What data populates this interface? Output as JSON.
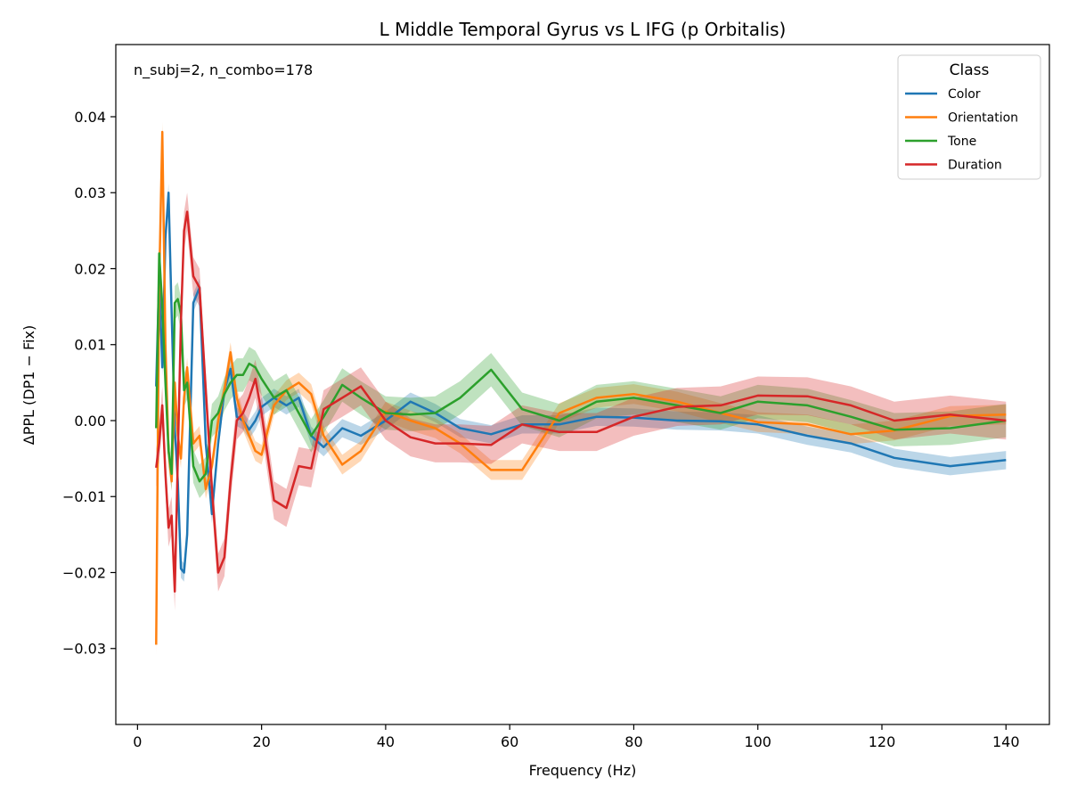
{
  "chart_data": {
    "type": "line",
    "title": "L Middle Temporal Gyrus vs L IFG (p Orbitalis)",
    "xlabel": "Frequency (Hz)",
    "ylabel": "ΔPPL (DP1 − Fix)",
    "xlim": [
      -3.5,
      147
    ],
    "ylim": [
      -0.04,
      0.0495
    ],
    "xticks": [
      0,
      20,
      40,
      60,
      80,
      100,
      120,
      140
    ],
    "yticks": [
      -0.03,
      -0.02,
      -0.01,
      0.0,
      0.01,
      0.02,
      0.03,
      0.04
    ],
    "ytick_labels": [
      "−0.03",
      "−0.02",
      "−0.01",
      "0.00",
      "0.01",
      "0.02",
      "0.03",
      "0.04"
    ],
    "grid": false,
    "annotation": "n_subj=2, n_combo=178",
    "legend": {
      "title": "Class",
      "placement": "top-right"
    },
    "x": [
      3,
      3.5,
      4,
      4.5,
      5,
      5.5,
      6,
      6.5,
      7,
      7.5,
      8,
      9,
      10,
      11,
      12,
      13,
      14,
      15,
      16,
      17,
      18,
      19,
      20,
      22,
      24,
      26,
      28,
      30,
      33,
      36,
      40,
      44,
      48,
      52,
      57,
      62,
      68,
      74,
      80,
      87,
      94,
      100,
      108,
      115,
      122,
      131,
      140
    ],
    "series": [
      {
        "name": "Color",
        "color": "#1f77b4",
        "band": 0.0012,
        "values": [
          0.0045,
          0.019,
          0.007,
          0.024,
          0.03,
          0.014,
          -0.001,
          -0.008,
          -0.0195,
          -0.02,
          -0.015,
          0.0155,
          0.0175,
          -0.003,
          -0.0123,
          -0.003,
          0.004,
          0.0068,
          0.0005,
          0.0,
          -0.0012,
          0.0,
          0.0018,
          0.003,
          0.002,
          0.003,
          -0.002,
          -0.0035,
          -0.001,
          -0.002,
          0.0,
          0.0025,
          0.001,
          -0.001,
          -0.0018,
          -0.0005,
          -0.0005,
          0.0005,
          0.0004,
          0.0,
          -0.0001,
          -0.0005,
          -0.002,
          -0.003,
          -0.0049,
          -0.006,
          -0.0052
        ]
      },
      {
        "name": "Orientation",
        "color": "#ff7f0e",
        "band": 0.0013,
        "values": [
          -0.0295,
          0.018,
          0.038,
          0.01,
          -0.004,
          -0.008,
          0.005,
          -0.002,
          -0.005,
          0.003,
          0.007,
          -0.003,
          -0.002,
          -0.009,
          -0.006,
          0.0,
          0.004,
          0.009,
          0.003,
          0.0,
          -0.002,
          -0.004,
          -0.0045,
          0.002,
          0.004,
          0.005,
          0.0035,
          -0.002,
          -0.0058,
          -0.004,
          0.0012,
          0.0,
          -0.001,
          -0.003,
          -0.0065,
          -0.0065,
          0.001,
          0.003,
          0.0035,
          0.0025,
          0.001,
          -0.0002,
          -0.0005,
          -0.0018,
          -0.0013,
          0.0006,
          0.0008
        ]
      },
      {
        "name": "Tone",
        "color": "#2ca02c",
        "band": 0.0022,
        "values": [
          -0.001,
          0.022,
          0.015,
          0.005,
          -0.004,
          -0.007,
          0.0155,
          0.016,
          0.014,
          0.004,
          0.005,
          -0.006,
          -0.008,
          -0.007,
          0.0,
          0.001,
          0.0035,
          0.005,
          0.006,
          0.006,
          0.0075,
          0.007,
          0.0055,
          0.003,
          0.004,
          0.001,
          -0.002,
          0.0005,
          0.0047,
          0.003,
          0.001,
          0.0008,
          0.001,
          0.003,
          0.0067,
          0.0015,
          0.0,
          0.0025,
          0.003,
          0.002,
          0.001,
          0.0025,
          0.002,
          0.0005,
          -0.0012,
          -0.001,
          0.0
        ]
      },
      {
        "name": "Duration",
        "color": "#d62728",
        "band": 0.0025,
        "values": [
          -0.0062,
          -0.003,
          0.002,
          -0.007,
          -0.0141,
          -0.0125,
          -0.0225,
          -0.005,
          0.013,
          0.025,
          0.0275,
          0.019,
          0.0175,
          0.004,
          -0.009,
          -0.02,
          -0.018,
          -0.008,
          0.0,
          0.001,
          0.003,
          0.0055,
          0.001,
          -0.0105,
          -0.0115,
          -0.006,
          -0.0063,
          0.0015,
          0.003,
          0.0045,
          0.0,
          -0.0022,
          -0.003,
          -0.003,
          -0.0032,
          -0.0005,
          -0.0015,
          -0.0015,
          0.0005,
          0.0018,
          0.002,
          0.0033,
          0.0032,
          0.002,
          0.0,
          0.0008,
          0.0
        ]
      }
    ]
  }
}
